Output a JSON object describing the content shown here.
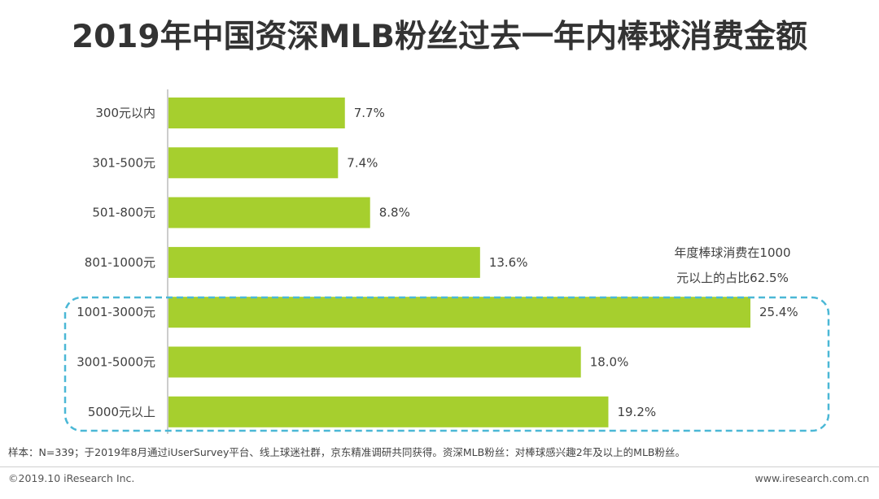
{
  "title": "2019年中国资深MLB粉丝过去一年内棒球消费金额",
  "annotation": {
    "line1": "年度棒球消费在1000",
    "line2": "元以上的占比62.5%"
  },
  "source": "样本：N=339；于2019年8月通过iUserSurvey平台、线上球迷社群，京东精准调研共同获得。资深MLB粉丝：对棒球感兴趣2年及以上的MLB粉丝。",
  "copyright": "©2019.10 iResearch Inc.",
  "website": "www.iresearch.com.cn",
  "colors": {
    "bar": "#a6cf2e",
    "highlight_border": "#4bb8d6",
    "axis": "#999999"
  },
  "chart_data": {
    "type": "bar",
    "orientation": "horizontal",
    "categories": [
      "300元以内",
      "301-500元",
      "501-800元",
      "801-1000元",
      "1001-3000元",
      "3001-5000元",
      "5000元以上"
    ],
    "values": [
      7.7,
      7.4,
      8.8,
      13.6,
      25.4,
      18.0,
      19.2
    ],
    "value_labels": [
      "7.7%",
      "7.4%",
      "8.8%",
      "13.6%",
      "25.4%",
      "18.0%",
      "19.2%"
    ],
    "highlighted_categories": [
      "1001-3000元",
      "3001-5000元",
      "5000元以上"
    ],
    "title": "2019年中国资深MLB粉丝过去一年内棒球消费金额",
    "grid": false,
    "legend": "none"
  }
}
